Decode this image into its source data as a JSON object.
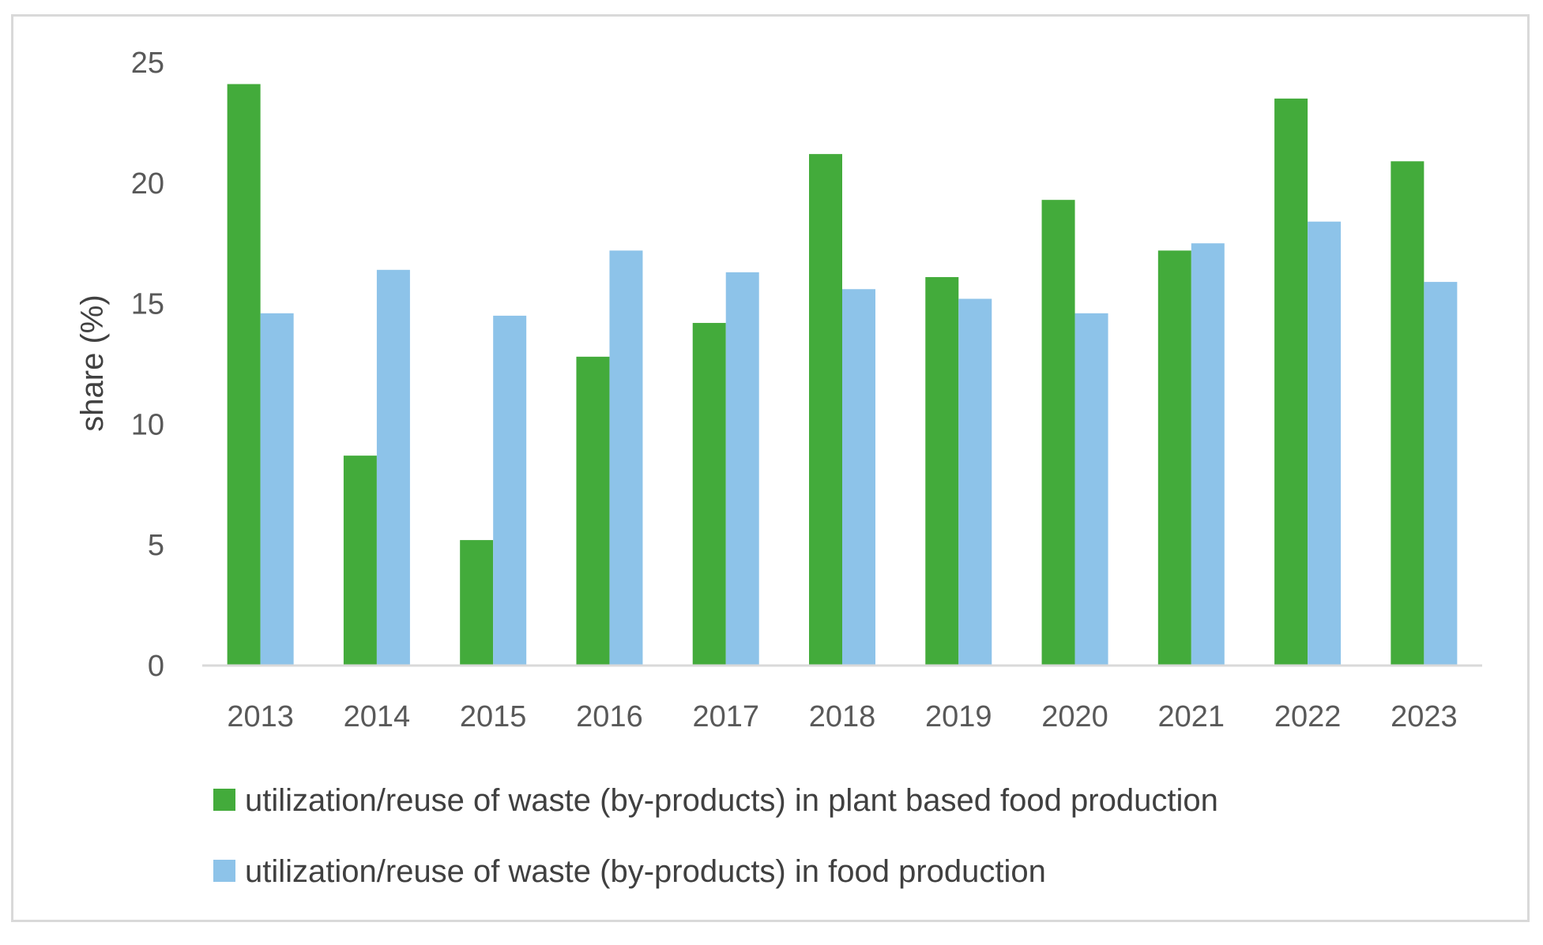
{
  "chart_data": {
    "type": "bar",
    "title": "",
    "xlabel": "",
    "ylabel": "share (%)",
    "ylim": [
      0,
      25
    ],
    "yticks": [
      "0",
      "5",
      "10",
      "15",
      "20",
      "25"
    ],
    "grid": false,
    "legend_position": "bottom",
    "categories": [
      "2013",
      "2014",
      "2015",
      "2016",
      "2017",
      "2018",
      "2019",
      "2020",
      "2021",
      "2022",
      "2023"
    ],
    "series": [
      {
        "name": "utilization/reuse of waste (by-products) in plant based food production",
        "color": "#43ab3b",
        "values": [
          24.1,
          8.7,
          5.2,
          12.8,
          14.2,
          21.2,
          16.1,
          19.3,
          17.2,
          23.5,
          20.9
        ]
      },
      {
        "name": "utilization/reuse of waste (by-products) in food production",
        "color": "#8dc3e9",
        "values": [
          14.6,
          16.4,
          14.5,
          17.2,
          16.3,
          15.6,
          15.2,
          14.6,
          17.5,
          18.4,
          15.9
        ]
      }
    ]
  },
  "colors": {
    "axis": "#d9d9d9",
    "frame": "#d9d9d9"
  }
}
